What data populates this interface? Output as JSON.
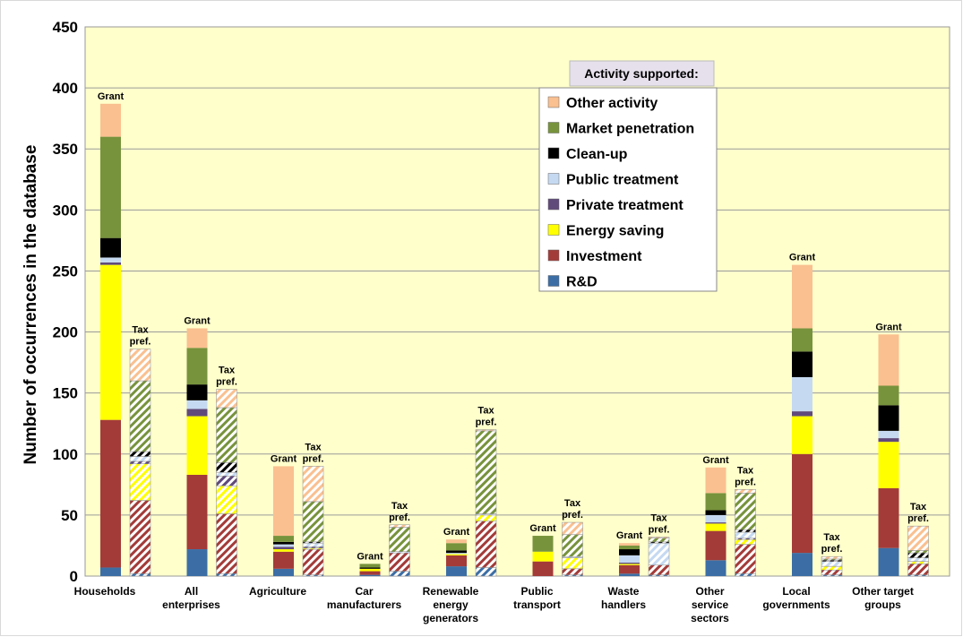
{
  "chart_data": {
    "type": "grouped_stacked_bar",
    "y_label": "Number of occurrences in the database",
    "legend_title": "Activity supported:",
    "bar_labels": [
      "Grant",
      "Tax\npref."
    ],
    "categories": [
      "Households",
      "All\nenterprises",
      "Agriculture",
      "Car\nmanufacturers",
      "Renewable\nenergy\ngenerators",
      "Public\ntransport",
      "Waste\nhandlers",
      "Other\nservice\nsectors",
      "Local\ngovernments",
      "Other target\ngroups"
    ],
    "series": [
      {
        "name": "R&D",
        "color": "#3c6ea5",
        "values": [
          [
            7,
            2
          ],
          [
            22,
            2
          ],
          [
            6,
            1
          ],
          [
            1,
            4
          ],
          [
            8,
            7
          ],
          [
            0,
            1
          ],
          [
            2,
            1
          ],
          [
            13,
            2
          ],
          [
            19,
            1
          ],
          [
            23,
            1
          ]
        ]
      },
      {
        "name": "Investment",
        "color": "#a33b39",
        "values": [
          [
            121,
            60
          ],
          [
            61,
            49
          ],
          [
            14,
            21
          ],
          [
            3,
            15
          ],
          [
            9,
            38
          ],
          [
            12,
            5
          ],
          [
            7,
            8
          ],
          [
            24,
            24
          ],
          [
            81,
            4
          ],
          [
            49,
            9
          ]
        ]
      },
      {
        "name": "Energy saving",
        "color": "#ffff00",
        "values": [
          [
            127,
            30
          ],
          [
            48,
            23
          ],
          [
            2,
            1
          ],
          [
            2,
            0
          ],
          [
            1,
            5
          ],
          [
            8,
            9
          ],
          [
            1,
            0
          ],
          [
            6,
            4
          ],
          [
            31,
            3
          ],
          [
            38,
            2
          ]
        ]
      },
      {
        "name": "Private treatment",
        "color": "#604a7b",
        "values": [
          [
            2,
            2
          ],
          [
            6,
            8
          ],
          [
            2,
            1
          ],
          [
            0,
            0
          ],
          [
            0,
            0
          ],
          [
            0,
            0
          ],
          [
            1,
            0
          ],
          [
            1,
            1
          ],
          [
            4,
            0
          ],
          [
            3,
            0
          ]
        ]
      },
      {
        "name": "Public treatment",
        "color": "#c5d9f1",
        "values": [
          [
            4,
            4
          ],
          [
            7,
            3
          ],
          [
            2,
            3
          ],
          [
            0,
            1
          ],
          [
            1,
            1
          ],
          [
            0,
            1
          ],
          [
            6,
            18
          ],
          [
            6,
            5
          ],
          [
            28,
            4
          ],
          [
            6,
            3
          ]
        ]
      },
      {
        "name": "Clean-up",
        "color": "#000000",
        "values": [
          [
            16,
            4
          ],
          [
            13,
            8
          ],
          [
            2,
            1
          ],
          [
            1,
            0
          ],
          [
            2,
            0
          ],
          [
            0,
            0
          ],
          [
            5,
            1
          ],
          [
            4,
            2
          ],
          [
            21,
            1
          ],
          [
            21,
            4
          ]
        ]
      },
      {
        "name": "Market penetration",
        "color": "#77933c",
        "values": [
          [
            83,
            58
          ],
          [
            30,
            45
          ],
          [
            5,
            33
          ],
          [
            3,
            20
          ],
          [
            6,
            68
          ],
          [
            13,
            18
          ],
          [
            3,
            3
          ],
          [
            14,
            30
          ],
          [
            19,
            1
          ],
          [
            16,
            2
          ]
        ]
      },
      {
        "name": "Other activity",
        "color": "#fac090",
        "values": [
          [
            27,
            26
          ],
          [
            16,
            15
          ],
          [
            57,
            29
          ],
          [
            0,
            2
          ],
          [
            3,
            1
          ],
          [
            0,
            10
          ],
          [
            2,
            1
          ],
          [
            21,
            3
          ],
          [
            52,
            2
          ],
          [
            42,
            20
          ]
        ]
      }
    ],
    "ylim": [
      0,
      450
    ],
    "yticks": [
      0,
      50,
      100,
      150,
      200,
      250,
      300,
      350,
      400,
      450
    ],
    "grid": true
  }
}
